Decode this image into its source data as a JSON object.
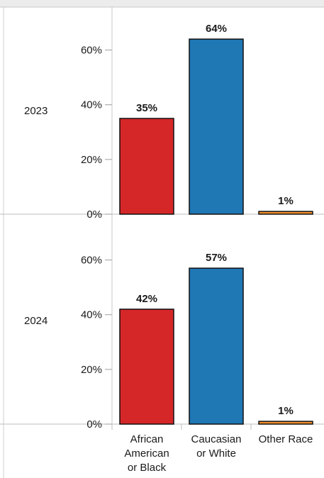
{
  "chart_data": {
    "type": "bar",
    "categories": [
      "African American or Black",
      "Caucasian or White",
      "Other Race"
    ],
    "category_label_lines": [
      [
        "African",
        "American",
        "or Black"
      ],
      [
        "Caucasian",
        "or White"
      ],
      [
        "Other Race"
      ]
    ],
    "colors": [
      "#d62728",
      "#1f77b4",
      "#f28e2b"
    ],
    "ylim": [
      0,
      70
    ],
    "y_ticks": [
      0,
      20,
      40,
      60
    ],
    "y_tick_labels": [
      "0%",
      "20%",
      "40%",
      "60%"
    ],
    "grid": false,
    "panels": [
      {
        "label": "2023",
        "values": [
          35,
          64,
          1
        ],
        "value_labels": [
          "35%",
          "64%",
          "1%"
        ]
      },
      {
        "label": "2024",
        "values": [
          42,
          57,
          1
        ],
        "value_labels": [
          "42%",
          "57%",
          "1%"
        ]
      }
    ]
  }
}
